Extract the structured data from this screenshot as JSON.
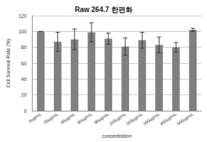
{
  "chart_data": {
    "type": "bar",
    "title": "Raw 264.7 한편화",
    "x_label": "concentration",
    "y_label": "Cell Survival Rate (%)",
    "categories": [
      "0ug/mL",
      "20ug/mL",
      "40ug/mL",
      "60ug/mL",
      "80ug/mL",
      "100ug/mL",
      "200ug/mL",
      "300ug/mL",
      "400ug/mL",
      "500ug/mL"
    ],
    "values": [
      100,
      87,
      90,
      99,
      91,
      81,
      89,
      83,
      80,
      102
    ],
    "errors": [
      0,
      12,
      13,
      12,
      7,
      11,
      10,
      10,
      6,
      2
    ],
    "color": "#808080",
    "ylim": [
      0,
      120
    ],
    "yticks": [
      0,
      20,
      40,
      60,
      80,
      100,
      120
    ],
    "grid": true
  }
}
